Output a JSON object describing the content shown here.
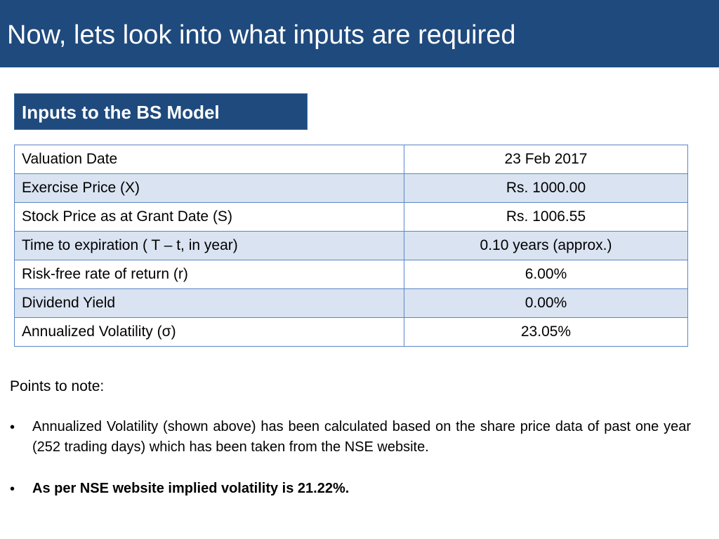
{
  "slide": {
    "title": "Now, lets look into what inputs are required",
    "section_heading": "Inputs to the BS Model"
  },
  "inputs_table": {
    "rows": [
      {
        "label": "Valuation Date",
        "value": "23 Feb 2017"
      },
      {
        "label": "Exercise Price (X)",
        "value": "Rs. 1000.00"
      },
      {
        "label": "Stock Price as at Grant Date (S)",
        "value": "Rs. 1006.55"
      },
      {
        "label": "Time to expiration ( T – t, in year)",
        "value": "0.10 years (approx.)"
      },
      {
        "label": "Risk-free rate of return (r)",
        "value": "6.00%"
      },
      {
        "label": "Dividend Yield",
        "value": "0.00%"
      },
      {
        "label": "Annualized Volatility (σ)",
        "value": "23.05%"
      }
    ]
  },
  "notes": {
    "heading": "Points to note:",
    "bullet_char": "•",
    "points": [
      "Annualized Volatility (shown above) has been calculated based on the share price data of past one year (252 trading days) which has been taken from the NSE website.",
      "As per NSE website implied volatility is 21.22%."
    ]
  },
  "colors": {
    "title_background": "#1f4a7d",
    "table_border": "#5b86c7",
    "table_band": "#dae3f1"
  }
}
